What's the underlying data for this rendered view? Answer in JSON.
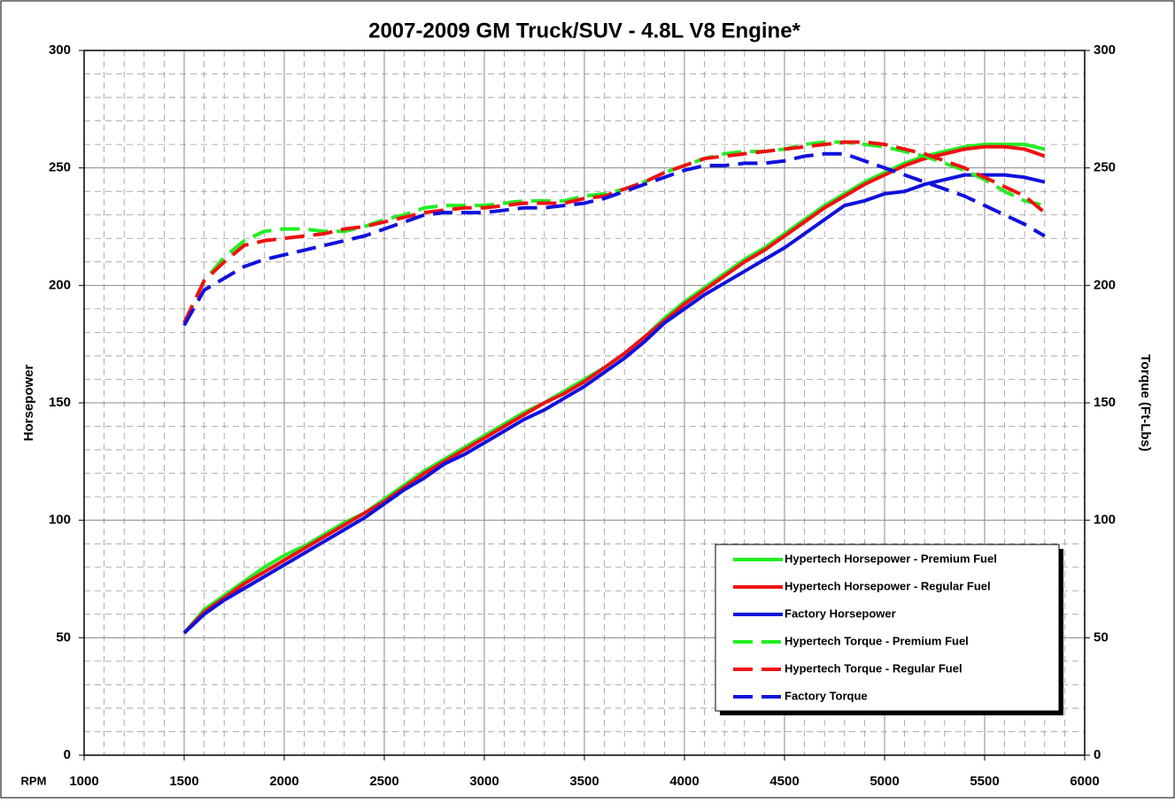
{
  "chart_data": {
    "type": "line",
    "title": "2007-2009 GM Truck/SUV - 4.8L V8 Engine*",
    "x_label": "RPM",
    "y_label": "Horsepower",
    "y2_label": "Torque (Ft-Lbs)",
    "x": [
      1500,
      1600,
      1700,
      1800,
      1900,
      2000,
      2100,
      2200,
      2300,
      2400,
      2500,
      2600,
      2700,
      2800,
      2900,
      3000,
      3100,
      3200,
      3300,
      3400,
      3500,
      3600,
      3700,
      3800,
      3900,
      4000,
      4100,
      4200,
      4300,
      4400,
      4500,
      4600,
      4700,
      4800,
      4900,
      5000,
      5100,
      5200,
      5300,
      5400,
      5500,
      5600,
      5700,
      5800
    ],
    "xlim": [
      1000,
      6000
    ],
    "xticks": [
      1000,
      1500,
      2000,
      2500,
      3000,
      3500,
      4000,
      4500,
      5000,
      5500,
      6000
    ],
    "ylim": [
      0,
      300
    ],
    "yticks": [
      0,
      50,
      100,
      150,
      200,
      250,
      300
    ],
    "y2lim": [
      0,
      300
    ],
    "y2ticks": [
      0,
      50,
      100,
      150,
      200,
      250,
      300
    ],
    "grid": true,
    "minor_grid": true,
    "legend": "lower right",
    "series": [
      {
        "name": "Hypertech Horsepower - Premium Fuel",
        "color": "#22ee22",
        "line_style": "solid",
        "axis": "y",
        "values": [
          52,
          62,
          68,
          74,
          80,
          85,
          89,
          94,
          99,
          103,
          109,
          115,
          121,
          126,
          131,
          136,
          141,
          146,
          150,
          155,
          160,
          165,
          171,
          178,
          186,
          193,
          199,
          205,
          211,
          216,
          222,
          228,
          234,
          239,
          244,
          248,
          252,
          255,
          257,
          259,
          260,
          260,
          260,
          258
        ]
      },
      {
        "name": "Hypertech Horsepower - Regular Fuel",
        "color": "#ee1111",
        "line_style": "solid",
        "axis": "y",
        "values": [
          52,
          61,
          67,
          73,
          78,
          83,
          88,
          93,
          98,
          103,
          108,
          114,
          120,
          125,
          130,
          135,
          140,
          145,
          150,
          154,
          159,
          165,
          171,
          178,
          185,
          192,
          198,
          204,
          210,
          215,
          221,
          227,
          233,
          238,
          243,
          247,
          251,
          254,
          256,
          258,
          259,
          259,
          258,
          255
        ]
      },
      {
        "name": "Factory Horsepower",
        "color": "#1111dd",
        "line_style": "solid",
        "axis": "y",
        "values": [
          52,
          60,
          66,
          71,
          76,
          81,
          86,
          91,
          96,
          101,
          107,
          113,
          118,
          124,
          128,
          133,
          138,
          143,
          147,
          152,
          157,
          163,
          169,
          176,
          184,
          190,
          196,
          201,
          206,
          211,
          216,
          222,
          228,
          234,
          236,
          239,
          240,
          243,
          245,
          247,
          247,
          247,
          246,
          244
        ]
      },
      {
        "name": "Hypertech Torque - Premium Fuel",
        "color": "#22ee22",
        "line_style": "dashed",
        "axis": "y2",
        "values": [
          184,
          202,
          212,
          219,
          223,
          224,
          224,
          223,
          223,
          225,
          228,
          230,
          233,
          234,
          234,
          234,
          235,
          236,
          236,
          236,
          238,
          239,
          241,
          244,
          248,
          251,
          254,
          256,
          257,
          257,
          258,
          260,
          261,
          261,
          260,
          259,
          257,
          255,
          252,
          249,
          245,
          240,
          236,
          234
        ]
      },
      {
        "name": "Hypertech Torque - Regular Fuel",
        "color": "#ee1111",
        "line_style": "dashed",
        "axis": "y2",
        "values": [
          184,
          202,
          210,
          217,
          219,
          220,
          221,
          222,
          224,
          225,
          227,
          229,
          231,
          232,
          233,
          233,
          234,
          235,
          235,
          235,
          237,
          238,
          241,
          244,
          248,
          251,
          254,
          255,
          256,
          257,
          258,
          259,
          260,
          261,
          261,
          260,
          258,
          256,
          253,
          250,
          246,
          242,
          238,
          231
        ]
      },
      {
        "name": "Factory Torque",
        "color": "#1111dd",
        "line_style": "dashed",
        "axis": "y2",
        "values": [
          183,
          198,
          203,
          208,
          211,
          213,
          215,
          217,
          219,
          221,
          224,
          227,
          230,
          231,
          231,
          231,
          232,
          233,
          233,
          234,
          235,
          237,
          240,
          243,
          246,
          249,
          251,
          251,
          252,
          252,
          253,
          255,
          256,
          256,
          253,
          250,
          247,
          244,
          241,
          238,
          234,
          230,
          226,
          221
        ]
      }
    ]
  }
}
